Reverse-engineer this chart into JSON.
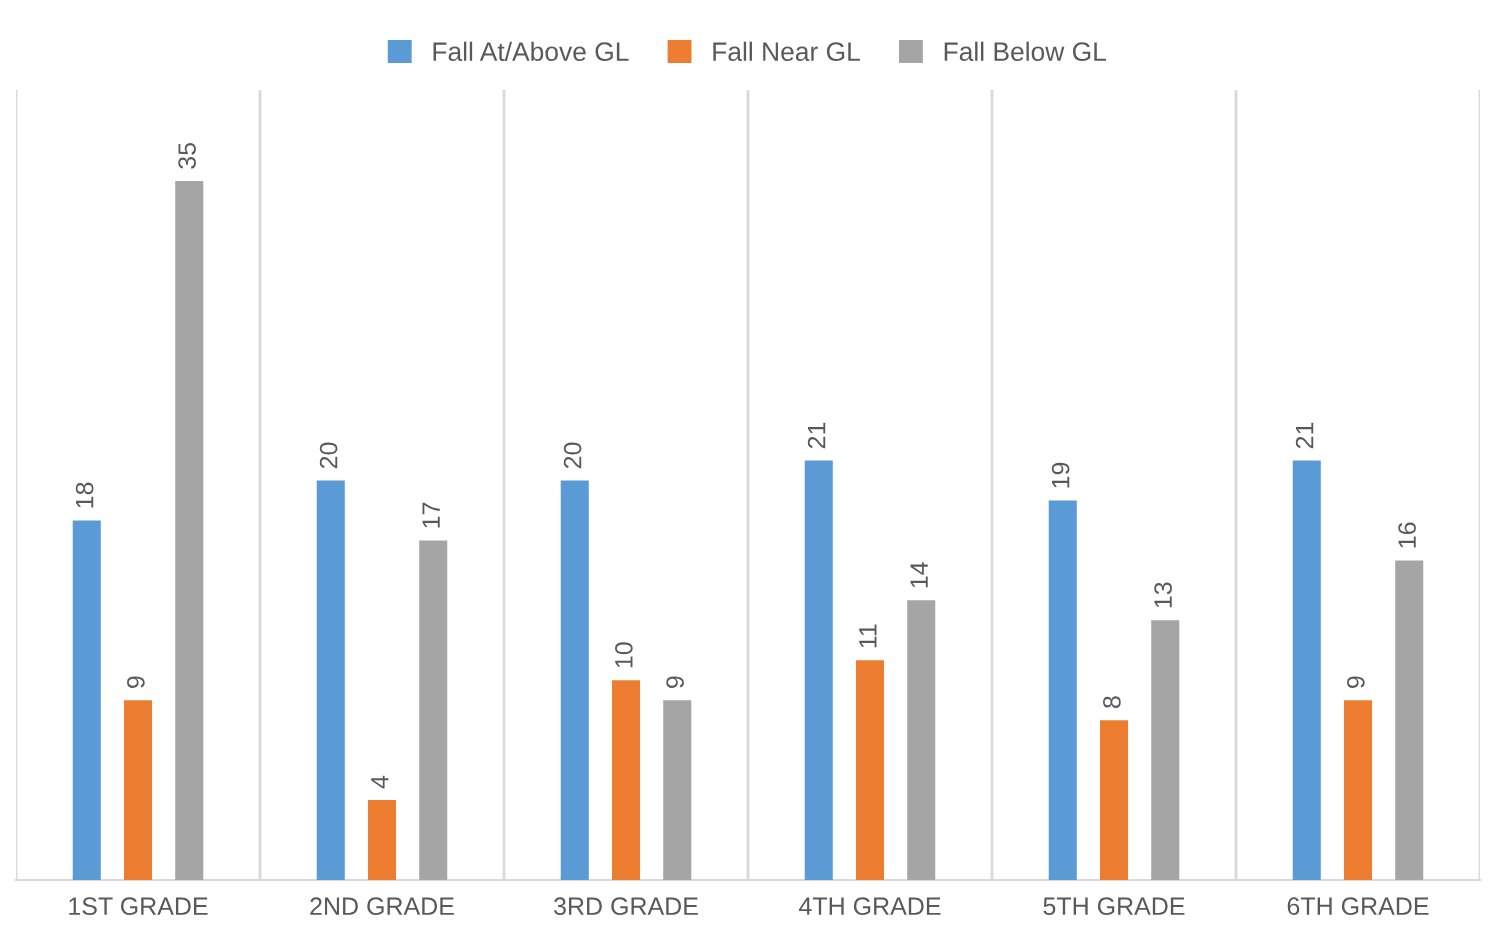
{
  "chart_data": {
    "type": "bar",
    "categories": [
      "1ST GRADE",
      "2ND GRADE",
      "3RD GRADE",
      "4TH GRADE",
      "5TH GRADE",
      "6TH GRADE"
    ],
    "series": [
      {
        "name": "Fall At/Above GL",
        "color": "#5b9bd5",
        "values": [
          18,
          20,
          20,
          21,
          19,
          21
        ]
      },
      {
        "name": "Fall Near GL",
        "color": "#ed7d31",
        "values": [
          9,
          4,
          10,
          11,
          8,
          9
        ]
      },
      {
        "name": "Fall Below GL",
        "color": "#a5a5a5",
        "values": [
          35,
          17,
          9,
          14,
          13,
          16
        ]
      }
    ],
    "tick_labels": "x",
    "data_labels": true,
    "legend": "top",
    "grid": "x"
  }
}
